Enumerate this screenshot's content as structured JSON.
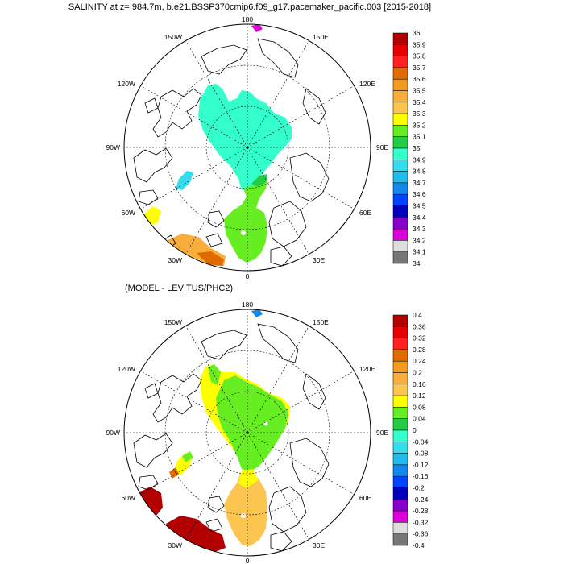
{
  "title": "SALINITY at z= 984.7m, b.e21.BSSP370cmip6.f09_g17.pacemaker_pacific.003 [2015-2018]",
  "diff_title": "(MODEL - LEVITUS/PHC2)",
  "longitude_labels": [
    "180",
    "150E",
    "120E",
    "90E",
    "60E",
    "30E",
    "0",
    "30W",
    "60W",
    "90W",
    "120W",
    "150W"
  ],
  "colorbar_top": {
    "labels": [
      "36",
      "35.9",
      "35.8",
      "35.7",
      "35.6",
      "35.5",
      "35.4",
      "35.3",
      "35.2",
      "35.1",
      "35",
      "34.9",
      "34.8",
      "34.7",
      "34.6",
      "34.5",
      "34.4",
      "34.3",
      "34.2",
      "34.1",
      "34"
    ],
    "colors": [
      "#b30000",
      "#e60000",
      "#ff2020",
      "#e06c00",
      "#f59a20",
      "#f9ae3c",
      "#fcc550",
      "#ffff00",
      "#66ee22",
      "#22cc44",
      "#33ffcc",
      "#33ddee",
      "#22bbee",
      "#1188ee",
      "#0044ff",
      "#0000bb",
      "#8800cc",
      "#dd00dd",
      "#dddddd",
      "#777777"
    ]
  },
  "colorbar_bottom": {
    "labels": [
      "0.4",
      "0.36",
      "0.32",
      "0.28",
      "0.24",
      "0.2",
      "0.16",
      "0.12",
      "0.08",
      "0.04",
      "0",
      "-0.04",
      "-0.08",
      "-0.12",
      "-0.16",
      "-0.2",
      "-0.24",
      "-0.28",
      "-0.32",
      "-0.36",
      "-0.4"
    ],
    "colors": [
      "#b30000",
      "#e60000",
      "#ff2020",
      "#e06c00",
      "#f59a20",
      "#f9ae3c",
      "#fcc550",
      "#ffff00",
      "#66ee22",
      "#22cc44",
      "#33ffcc",
      "#33ddee",
      "#22bbee",
      "#1188ee",
      "#0044ff",
      "#0000bb",
      "#8800cc",
      "#dd00dd",
      "#dddddd",
      "#777777"
    ]
  },
  "colors": {
    "top_arctic_fill": "#33ffcc",
    "top_atlantic_fill": "#66ee22",
    "diff_arctic_yellow": "#ffff00",
    "diff_atlantic_orange": "#fcc550",
    "diff_green": "#66ee22",
    "diff_red": "#b30000"
  }
}
